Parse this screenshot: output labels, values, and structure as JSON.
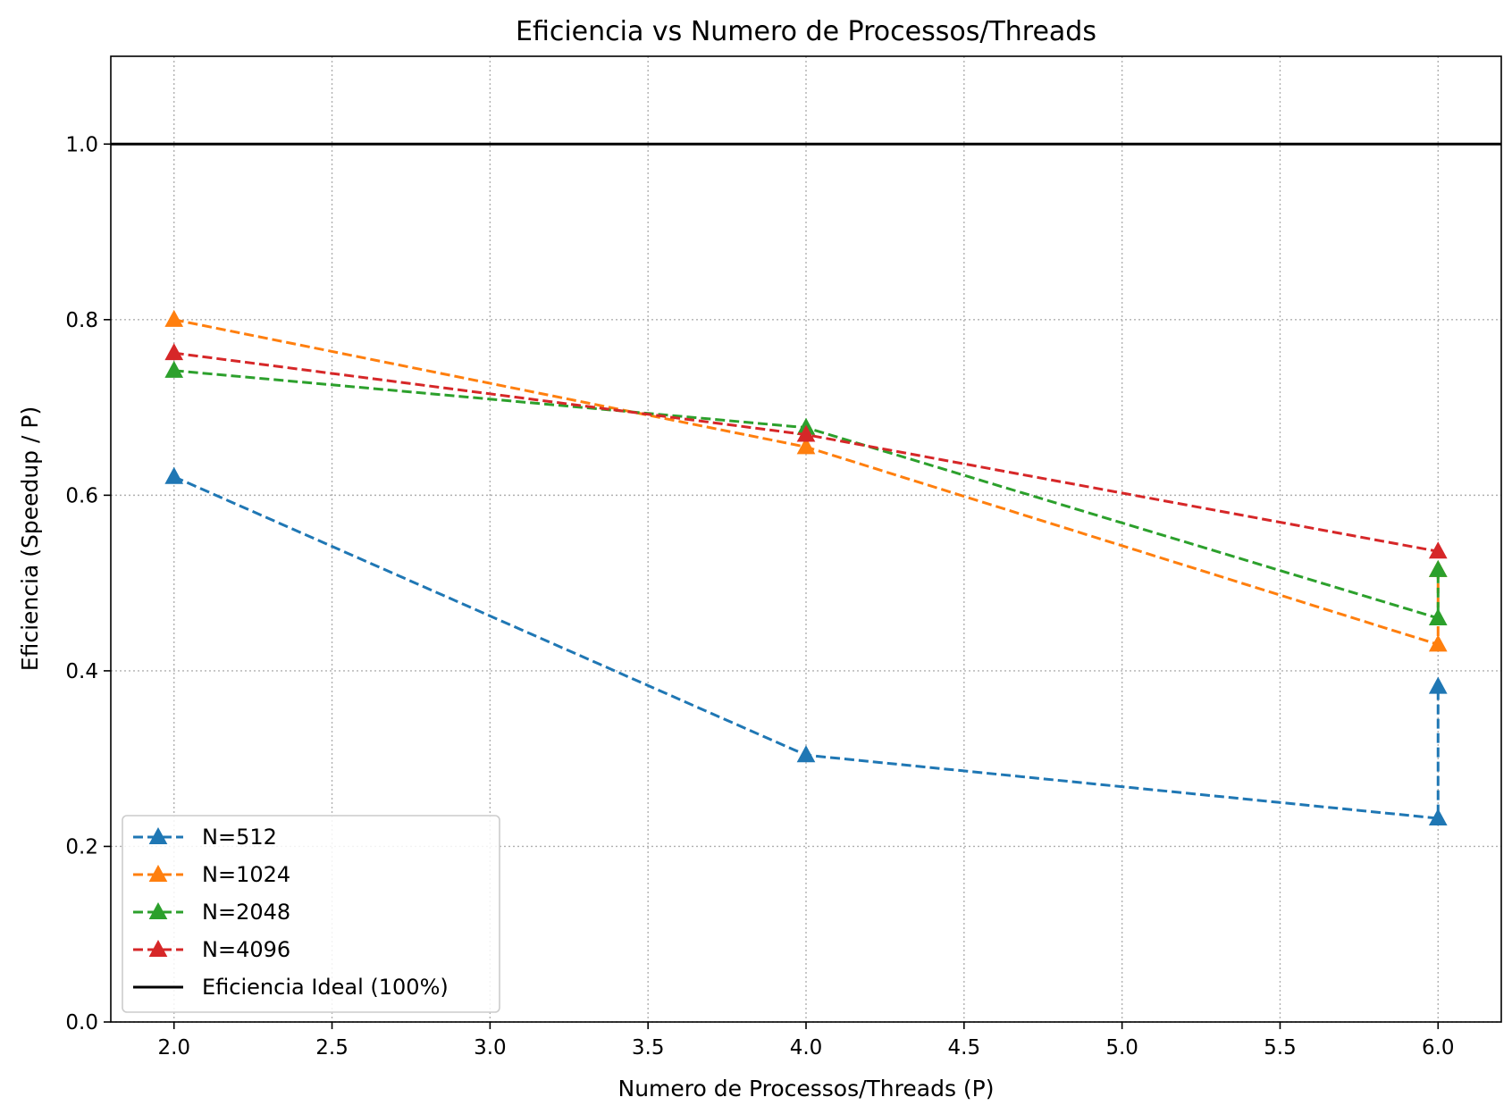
{
  "chart_data": {
    "type": "line",
    "title": "Eficiencia vs Numero de Processos/Threads",
    "xlabel": "Numero de Processos/Threads (P)",
    "ylabel": "Eficiencia (Speedup / P)",
    "xlim": [
      1.8,
      6.2
    ],
    "ylim": [
      0.0,
      1.1
    ],
    "xticks": [
      2.0,
      2.5,
      3.0,
      3.5,
      4.0,
      4.5,
      5.0,
      5.5,
      6.0
    ],
    "xtick_labels": [
      "2.0",
      "2.5",
      "3.0",
      "3.5",
      "4.0",
      "4.5",
      "5.0",
      "5.5",
      "6.0"
    ],
    "yticks": [
      0.0,
      0.2,
      0.4,
      0.6,
      0.8,
      1.0
    ],
    "ytick_labels": [
      "0.0",
      "0.2",
      "0.4",
      "0.6",
      "0.8",
      "1.0"
    ],
    "grid": true,
    "legend_position": "lower-left",
    "series": [
      {
        "name": "N=512",
        "color": "#1f77b4",
        "marker": "triangle",
        "linestyle": "dashed",
        "x": [
          2,
          4,
          6,
          6
        ],
        "y": [
          0.621,
          0.304,
          0.232,
          0.382
        ]
      },
      {
        "name": "N=1024",
        "color": "#ff7f0e",
        "marker": "triangle",
        "linestyle": "dashed",
        "x": [
          2,
          4,
          6,
          6
        ],
        "y": [
          0.8,
          0.655,
          0.43,
          0.515
        ]
      },
      {
        "name": "N=2048",
        "color": "#2ca02c",
        "marker": "triangle",
        "linestyle": "dashed",
        "x": [
          2,
          4,
          6,
          6
        ],
        "y": [
          0.742,
          0.677,
          0.46,
          0.515
        ]
      },
      {
        "name": "N=4096",
        "color": "#d62728",
        "marker": "triangle",
        "linestyle": "dashed",
        "x": [
          2,
          4,
          6
        ],
        "y": [
          0.762,
          0.669,
          0.536
        ]
      }
    ],
    "reference_line": {
      "name": "Eficiencia Ideal (100%)",
      "y": 1.0,
      "color": "#000000",
      "linestyle": "solid"
    }
  }
}
